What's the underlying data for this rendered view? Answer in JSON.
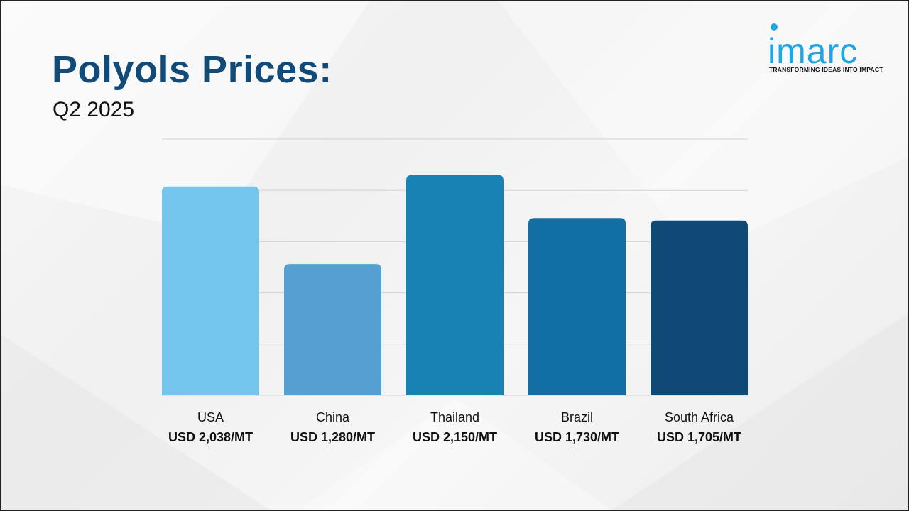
{
  "title": "Polyols Prices:",
  "subtitle": "Q2 2025",
  "logo": {
    "wordmark": "imarc",
    "tagline": "TRANSFORMING IDEAS INTO IMPACT",
    "color": "#1aa6e8"
  },
  "chart_data": {
    "type": "bar",
    "categories": [
      "USA",
      "China",
      "Thailand",
      "Brazil",
      "South Africa"
    ],
    "values": [
      2038,
      1280,
      2150,
      1730,
      1705
    ],
    "value_labels": [
      "USD 2,038/MT",
      "USD 1,280/MT",
      "USD 2,150/MT",
      "USD 1,730/MT",
      "USD 1,705/MT"
    ],
    "colors": [
      "#74c5ee",
      "#559fd3",
      "#1783b4",
      "#126fa3",
      "#0f4a77"
    ],
    "ylim": [
      0,
      2500
    ],
    "grid": true,
    "legend": "none",
    "xlabel": "",
    "ylabel": ""
  }
}
